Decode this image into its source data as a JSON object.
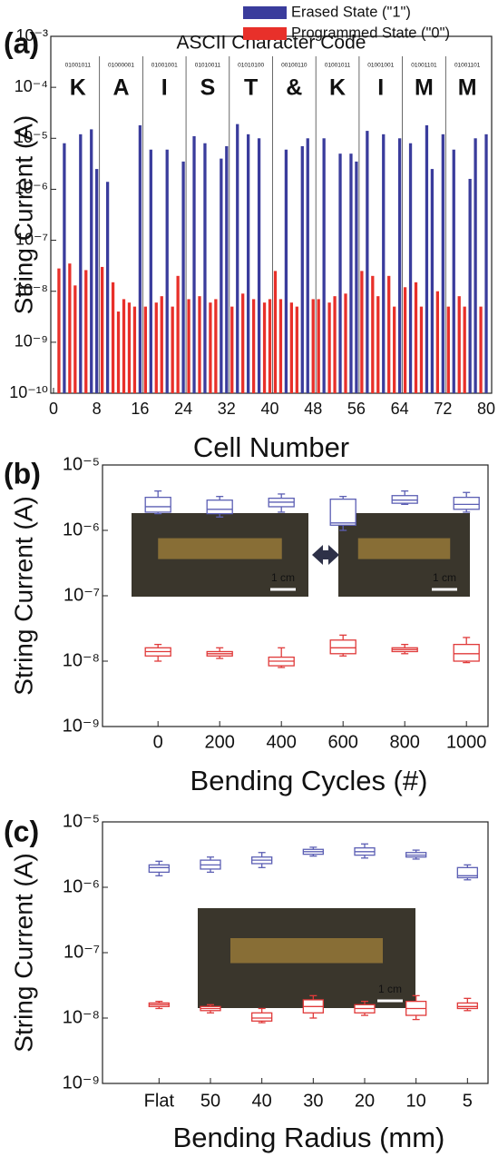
{
  "chart_data": [
    {
      "type": "bar",
      "panel_label": "(a)",
      "title": "ASCII Character Code",
      "xlabel": "Cell Number",
      "ylabel": "String Current (A)",
      "log": true,
      "characters": [
        "K",
        "A",
        "I",
        "S",
        "T",
        "&",
        "K",
        "I",
        "M",
        "M"
      ],
      "codes": [
        "01001011",
        "01000001",
        "01001001",
        "01010011",
        "01010100",
        "00100110",
        "01001011",
        "01001001",
        "01001101",
        "01001101"
      ],
      "x": [
        1,
        2,
        3,
        4,
        5,
        6,
        7,
        8,
        9,
        10,
        11,
        12,
        13,
        14,
        15,
        16,
        17,
        18,
        19,
        20,
        21,
        22,
        23,
        24,
        25,
        26,
        27,
        28,
        29,
        30,
        31,
        32,
        33,
        34,
        35,
        36,
        37,
        38,
        39,
        40,
        41,
        42,
        43,
        44,
        45,
        46,
        47,
        48,
        49,
        50,
        51,
        52,
        53,
        54,
        55,
        56,
        57,
        58,
        59,
        60,
        61,
        62,
        63,
        64,
        65,
        66,
        67,
        68,
        69,
        70,
        71,
        72,
        73,
        74,
        75,
        76,
        77,
        78,
        79,
        80
      ],
      "series": [
        {
          "name": "Erased State (\"1\")",
          "color": "#3a3c9c",
          "values": [
            null,
            8e-06,
            null,
            null,
            1.2e-05,
            null,
            1.5e-05,
            2.5e-06,
            null,
            1.4e-06,
            null,
            null,
            null,
            null,
            null,
            1.8e-05,
            null,
            6e-06,
            null,
            null,
            6e-06,
            null,
            null,
            3.5e-06,
            null,
            1.1e-05,
            null,
            8e-06,
            null,
            null,
            4e-06,
            7e-06,
            null,
            1.9e-05,
            null,
            1.2e-05,
            null,
            1e-05,
            null,
            null,
            null,
            null,
            6e-06,
            null,
            null,
            7e-06,
            1e-05,
            null,
            null,
            1e-05,
            null,
            null,
            5e-06,
            null,
            5e-06,
            3.5e-06,
            null,
            1.4e-05,
            null,
            null,
            1.2e-05,
            null,
            null,
            1e-05,
            null,
            8e-06,
            null,
            null,
            1.8e-05,
            2.5e-06,
            null,
            1.2e-05,
            null,
            6e-06,
            null,
            null,
            1.6e-06,
            1e-05,
            null,
            1.2e-05
          ]
        },
        {
          "name": "Programmed State (\"0\")",
          "color": "#e8302a",
          "values": [
            2.8e-08,
            null,
            3.5e-08,
            1.3e-08,
            null,
            2.6e-08,
            null,
            null,
            3e-08,
            null,
            1.5e-08,
            4e-09,
            7e-09,
            6e-09,
            5e-09,
            null,
            5e-09,
            null,
            6e-09,
            8e-09,
            null,
            5e-09,
            2e-08,
            null,
            7e-09,
            null,
            8e-09,
            null,
            6e-09,
            7e-09,
            null,
            null,
            5e-09,
            null,
            9e-09,
            null,
            7e-09,
            null,
            6e-09,
            7e-09,
            2.5e-08,
            7e-09,
            null,
            6e-09,
            5e-09,
            null,
            null,
            7e-09,
            7e-09,
            null,
            6e-09,
            8e-09,
            null,
            9e-09,
            null,
            null,
            2.5e-08,
            null,
            2e-08,
            8e-09,
            null,
            2e-08,
            5e-09,
            null,
            1.2e-08,
            null,
            1.5e-08,
            5e-09,
            null,
            null,
            1e-08,
            null,
            5e-09,
            null,
            8e-09,
            5e-09,
            null,
            null,
            5e-09,
            null
          ]
        }
      ],
      "xlim": [
        -0.5,
        81
      ],
      "xticks": [
        0,
        8,
        16,
        24,
        32,
        40,
        48,
        56,
        64,
        72,
        80
      ],
      "ylim": [
        1e-10,
        0.001
      ],
      "yticks": [
        {
          "value": 0.001,
          "label": "10⁻³"
        },
        {
          "value": 0.0001,
          "label": "10⁻⁴"
        },
        {
          "value": 1e-05,
          "label": "10⁻⁵"
        },
        {
          "value": 1e-06,
          "label": "10⁻⁶"
        },
        {
          "value": 1e-07,
          "label": "10⁻⁷"
        },
        {
          "value": 1e-08,
          "label": "10⁻⁸"
        },
        {
          "value": 1e-09,
          "label": "10⁻⁹"
        },
        {
          "value": 1e-10,
          "label": "10⁻¹⁰"
        }
      ]
    },
    {
      "type": "box",
      "panel_label": "(b)",
      "xlabel": "Bending Cycles (#)",
      "ylabel": "String Current (A)",
      "log": true,
      "x": [
        0,
        200,
        400,
        600,
        800,
        1000
      ],
      "xlim": [
        -180,
        1070
      ],
      "xticks": [
        0,
        200,
        400,
        600,
        800,
        1000
      ],
      "photo_labels": [
        "1 cm",
        "1 cm"
      ],
      "series": [
        {
          "color": "#5c5fb4",
          "whislo": [
            1.8e-06,
            1.6e-06,
            1.9e-06,
            1e-06,
            2.5e-06,
            1.9e-06
          ],
          "q1": [
            1.9e-06,
            1.8e-06,
            2.3e-06,
            1.2e-06,
            2.6e-06,
            2.1e-06
          ],
          "med": [
            2.3e-06,
            2.1e-06,
            2.7e-06,
            1.3e-06,
            2.9e-06,
            2.5e-06
          ],
          "q3": [
            3.2e-06,
            2.9e-06,
            3.1e-06,
            3e-06,
            3.4e-06,
            3.2e-06
          ],
          "whishi": [
            4e-06,
            3.3e-06,
            3.6e-06,
            3.3e-06,
            4e-06,
            3.8e-06
          ]
        },
        {
          "color": "#e03a3a",
          "whislo": [
            1e-08,
            1.1e-08,
            8e-09,
            1.2e-08,
            1.3e-08,
            9.5e-09
          ],
          "q1": [
            1.2e-08,
            1.2e-08,
            8.5e-09,
            1.3e-08,
            1.4e-08,
            1e-08
          ],
          "med": [
            1.4e-08,
            1.3e-08,
            1e-08,
            1.6e-08,
            1.5e-08,
            1.3e-08
          ],
          "q3": [
            1.6e-08,
            1.4e-08,
            1.15e-08,
            2.1e-08,
            1.6e-08,
            1.8e-08
          ],
          "whishi": [
            1.8e-08,
            1.6e-08,
            1.6e-08,
            2.5e-08,
            1.8e-08,
            2.3e-08
          ]
        }
      ],
      "ylim": [
        1e-09,
        1e-05
      ],
      "yticks": [
        {
          "value": 1e-05,
          "label": "10⁻⁵"
        },
        {
          "value": 1e-06,
          "label": "10⁻⁶"
        },
        {
          "value": 1e-07,
          "label": "10⁻⁷"
        },
        {
          "value": 1e-08,
          "label": "10⁻⁸"
        },
        {
          "value": 1e-09,
          "label": "10⁻⁹"
        }
      ]
    },
    {
      "type": "box",
      "panel_label": "(c)",
      "xlabel": "Bending Radius (mm)",
      "ylabel": "String Current (A)",
      "log": true,
      "categories": [
        "Flat",
        "50",
        "40",
        "30",
        "20",
        "10",
        "5"
      ],
      "photo_labels": [
        "1 cm"
      ],
      "series": [
        {
          "color": "#5c5fb4",
          "whislo": [
            1.5e-06,
            1.7e-06,
            2e-06,
            3e-06,
            2.8e-06,
            2.7e-06,
            1.3e-06
          ],
          "q1": [
            1.7e-06,
            1.9e-06,
            2.3e-06,
            3.2e-06,
            3.1e-06,
            2.9e-06,
            1.4e-06
          ],
          "med": [
            2e-06,
            2.2e-06,
            2.6e-06,
            3.5e-06,
            3.5e-06,
            3.1e-06,
            1.5e-06
          ],
          "q3": [
            2.2e-06,
            2.6e-06,
            2.9e-06,
            3.8e-06,
            4e-06,
            3.4e-06,
            2e-06
          ],
          "whishi": [
            2.5e-06,
            2.9e-06,
            3.4e-06,
            4.1e-06,
            4.6e-06,
            3.7e-06,
            2.2e-06
          ]
        },
        {
          "color": "#e03a3a",
          "whislo": [
            1.4e-08,
            1.2e-08,
            8.5e-09,
            1e-08,
            1.1e-08,
            9.5e-09,
            1.3e-08
          ],
          "q1": [
            1.5e-08,
            1.3e-08,
            9e-09,
            1.2e-08,
            1.2e-08,
            1.1e-08,
            1.4e-08
          ],
          "med": [
            1.6e-08,
            1.4e-08,
            1e-08,
            1.5e-08,
            1.4e-08,
            1.4e-08,
            1.5e-08
          ],
          "q3": [
            1.7e-08,
            1.5e-08,
            1.2e-08,
            1.9e-08,
            1.6e-08,
            1.8e-08,
            1.7e-08
          ],
          "whishi": [
            1.8e-08,
            1.6e-08,
            1.4e-08,
            2.2e-08,
            1.8e-08,
            2.2e-08,
            2e-08
          ]
        }
      ],
      "ylim": [
        1e-09,
        1e-05
      ],
      "yticks": [
        {
          "value": 1e-05,
          "label": "10⁻⁵"
        },
        {
          "value": 1e-06,
          "label": "10⁻⁶"
        },
        {
          "value": 1e-07,
          "label": "10⁻⁷"
        },
        {
          "value": 1e-08,
          "label": "10⁻⁸"
        },
        {
          "value": 1e-09,
          "label": "10⁻⁹"
        }
      ]
    }
  ]
}
